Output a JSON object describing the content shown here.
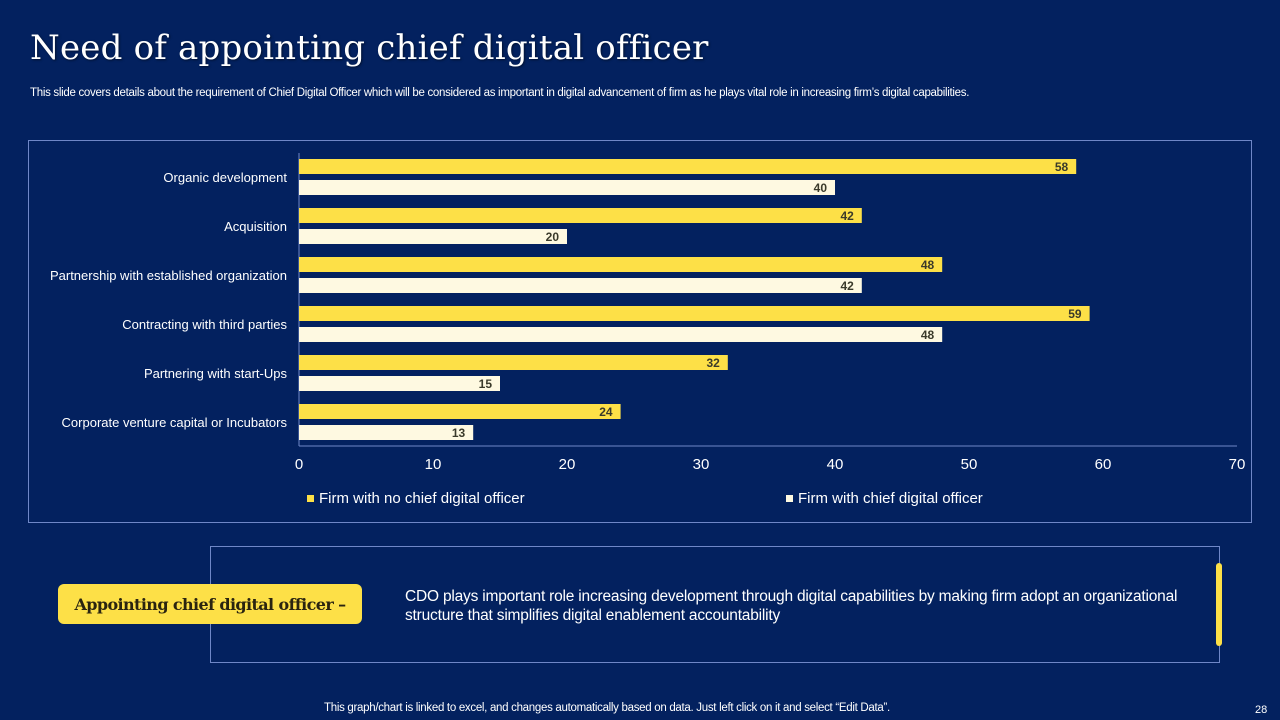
{
  "slide": {
    "title": "Need of appointing chief digital officer",
    "subtitle": "This slide covers details about the requirement of Chief Digital Officer which will be considered as important in digital advancement of firm as he plays vital role in increasing firm’s digital capabilities.",
    "footer_note": "This graph/chart is linked to excel, and changes automatically based on data. Just left click on it and select “Edit Data”.",
    "page_number": "28"
  },
  "colors": {
    "background": "#03215F",
    "series_no_cdo": "#FDE047",
    "series_with_cdo": "#FEF9E1",
    "frame_border": "#6F87C7",
    "axis_line": "#6F87C7"
  },
  "callout": {
    "label": "Appointing chief digital officer –",
    "text": "CDO plays important role increasing development through  digital capabilities by making firm adopt an organizational structure  that simplifies digital enablement  accountability"
  },
  "chart_data": {
    "type": "bar",
    "orientation": "horizontal",
    "title": "",
    "xlabel": "",
    "ylabel": "",
    "categories": [
      "Organic development",
      "Acquisition",
      "Partnership with established organization",
      "Contracting with third parties",
      "Partnering with start-Ups",
      "Corporate venture capital or Incubators"
    ],
    "series": [
      {
        "name": "Firm with no chief digital officer",
        "color": "#FDE047",
        "values": [
          58,
          42,
          48,
          59,
          32,
          24
        ]
      },
      {
        "name": "Firm with chief digital officer",
        "color": "#FEF9E1",
        "values": [
          40,
          20,
          42,
          48,
          15,
          13
        ]
      }
    ],
    "xlim": [
      0,
      70
    ],
    "x_ticks": [
      0,
      10,
      20,
      30,
      40,
      50,
      60,
      70
    ],
    "grid": false,
    "data_labels": true,
    "legend_position": "bottom"
  }
}
